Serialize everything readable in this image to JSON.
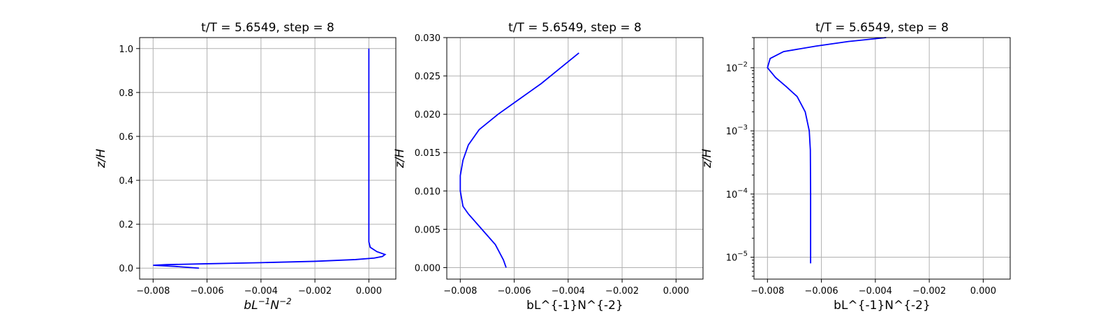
{
  "colors": {
    "line": "#0000ff",
    "grid": "#b0b0b0"
  },
  "chart_data": [
    {
      "type": "line",
      "title": "t/T = 5.6549, step = 8",
      "xlabel": "bL^{-1}N^{-2}",
      "ylabel": "z/H",
      "xlim": [
        -0.0085,
        0.001
      ],
      "ylim": [
        -0.05,
        1.05
      ],
      "yscale": "linear",
      "grid": true,
      "xticks": [
        -0.008,
        -0.006,
        -0.004,
        -0.002,
        0.0
      ],
      "xtick_labels": [
        "−0.008",
        "−0.006",
        "−0.004",
        "−0.002",
        "0.000"
      ],
      "yticks": [
        0.0,
        0.2,
        0.4,
        0.6,
        0.8,
        1.0
      ],
      "ytick_labels": [
        "0.0",
        "0.2",
        "0.4",
        "0.6",
        "0.8",
        "1.0"
      ],
      "series": [
        {
          "x": [
            -0.0063,
            -0.0072,
            -0.008,
            -0.0075,
            -0.006,
            -0.004,
            -0.002,
            -0.0005,
            0.0002,
            0.0005,
            0.0006,
            0.0003,
            5e-05,
            0.0,
            0.0,
            0.0,
            0.0,
            0.0,
            0.0
          ],
          "y": [
            0.0,
            0.008,
            0.013,
            0.016,
            0.02,
            0.025,
            0.031,
            0.039,
            0.046,
            0.053,
            0.062,
            0.075,
            0.095,
            0.12,
            0.14,
            0.2,
            0.5,
            0.8,
            1.0
          ]
        }
      ]
    },
    {
      "type": "line",
      "title": "t/T = 5.6549, step = 8",
      "xlabel": "bL^{-1}N^{-2}",
      "ylabel": "z/H",
      "xlim": [
        -0.0085,
        0.001
      ],
      "ylim": [
        -0.0015,
        0.03
      ],
      "yscale": "linear",
      "grid": true,
      "xticks": [
        -0.008,
        -0.006,
        -0.004,
        -0.002,
        0.0
      ],
      "xtick_labels": [
        "−0.008",
        "−0.006",
        "−0.004",
        "−0.002",
        "0.000"
      ],
      "yticks": [
        0.0,
        0.005,
        0.01,
        0.015,
        0.02,
        0.025,
        0.03
      ],
      "ytick_labels": [
        "0.000",
        "0.005",
        "0.010",
        "0.015",
        "0.020",
        "0.025",
        "0.030"
      ],
      "series": [
        {
          "x": [
            -0.0063,
            -0.0064,
            -0.0067,
            -0.0072,
            -0.0077,
            -0.0079,
            -0.008,
            -0.008,
            -0.0079,
            -0.0077,
            -0.0073,
            -0.0066,
            -0.0058,
            -0.005,
            -0.0043,
            -0.0036
          ],
          "y": [
            0.0,
            0.001,
            0.003,
            0.005,
            0.007,
            0.008,
            0.01,
            0.012,
            0.014,
            0.016,
            0.018,
            0.02,
            0.022,
            0.024,
            0.026,
            0.028
          ]
        }
      ]
    },
    {
      "type": "line",
      "title": "t/T = 5.6549, step = 8",
      "xlabel": "bL^{-1}N^{-2}",
      "ylabel": "z/H",
      "xlim": [
        -0.0085,
        0.001
      ],
      "ylim": [
        4.5e-06,
        0.03
      ],
      "yscale": "log",
      "grid": true,
      "xticks": [
        -0.008,
        -0.006,
        -0.004,
        -0.002,
        0.0
      ],
      "xtick_labels": [
        "−0.008",
        "−0.006",
        "−0.004",
        "−0.002",
        "0.000"
      ],
      "yticks": [
        1e-05,
        0.0001,
        0.001,
        0.01
      ],
      "ytick_labels": [
        "10",
        "10",
        "10",
        "10"
      ],
      "ytick_exponents": [
        "−5",
        "−4",
        "−3",
        "−2"
      ],
      "series": [
        {
          "x": [
            -0.0064,
            -0.0064,
            -0.0064,
            -0.00641,
            -0.00645,
            -0.0066,
            -0.0069,
            -0.0073,
            -0.0077,
            -0.008,
            -0.0079,
            -0.0074,
            -0.0062,
            -0.005,
            -0.0036
          ],
          "y": [
            8e-06,
            1e-05,
            0.0001,
            0.0005,
            0.001,
            0.002,
            0.0035,
            0.005,
            0.007,
            0.01,
            0.014,
            0.018,
            0.022,
            0.026,
            0.03
          ]
        }
      ]
    }
  ]
}
